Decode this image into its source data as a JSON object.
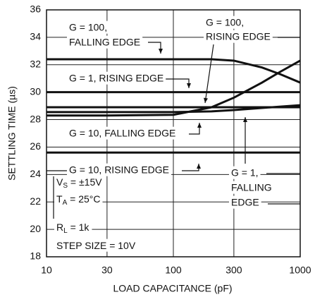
{
  "chart_data": {
    "type": "line",
    "xlabel": "LOAD CAPACITANCE (pF)",
    "ylabel": "SETTLING TIME (µs)",
    "xscale": "log",
    "grid": true,
    "color": "#111111",
    "x": [
      10,
      30,
      100,
      200,
      300,
      500,
      700,
      1000
    ],
    "xlim": [
      10,
      1000
    ],
    "xticks": [
      10,
      30,
      100,
      300,
      1000
    ],
    "ylim": [
      18,
      36
    ],
    "yticks": [
      18,
      20,
      22,
      24,
      26,
      28,
      30,
      32,
      34,
      36
    ],
    "series": [
      {
        "label_lines": [
          "G = 100,",
          "FALLING EDGE"
        ],
        "values": [
          32.4,
          32.4,
          32.4,
          32.4,
          32.3,
          31.8,
          31.3,
          30.7
        ]
      },
      {
        "label_lines": [
          "G = 1, RISING EDGE"
        ],
        "values": [
          30,
          30,
          30,
          30,
          30,
          30,
          30,
          30
        ]
      },
      {
        "label_lines": [
          "G = 100,",
          "RISING EDGE"
        ],
        "values": [
          28.3,
          28.3,
          28.35,
          28.9,
          29.6,
          30.7,
          31.5,
          32.3
        ]
      },
      {
        "label_lines": [
          "G = 10, FALLING EDGE"
        ],
        "values": [
          28.9,
          28.9,
          28.9,
          28.9,
          28.9,
          28.9,
          28.9,
          28.9
        ]
      },
      {
        "label_lines": [
          "G = 10, RISING EDGE"
        ],
        "values": [
          25.6,
          25.6,
          25.6,
          25.6,
          25.6,
          25.6,
          25.6,
          25.6
        ]
      },
      {
        "label_lines": [
          "G = 1,",
          "FALLING",
          "EDGE"
        ],
        "values": [
          28.55,
          28.55,
          28.55,
          28.6,
          28.7,
          28.85,
          28.95,
          29.05
        ]
      }
    ],
    "conditions": [
      {
        "main": "V",
        "sub": "S",
        "tail": " = ±15V"
      },
      {
        "main": "T",
        "sub": "A",
        "tail": " = 25°C"
      },
      {
        "main": "R",
        "sub": "L",
        "tail": " = 1k"
      },
      {
        "main": "STEP SIZE = 10V"
      }
    ]
  }
}
